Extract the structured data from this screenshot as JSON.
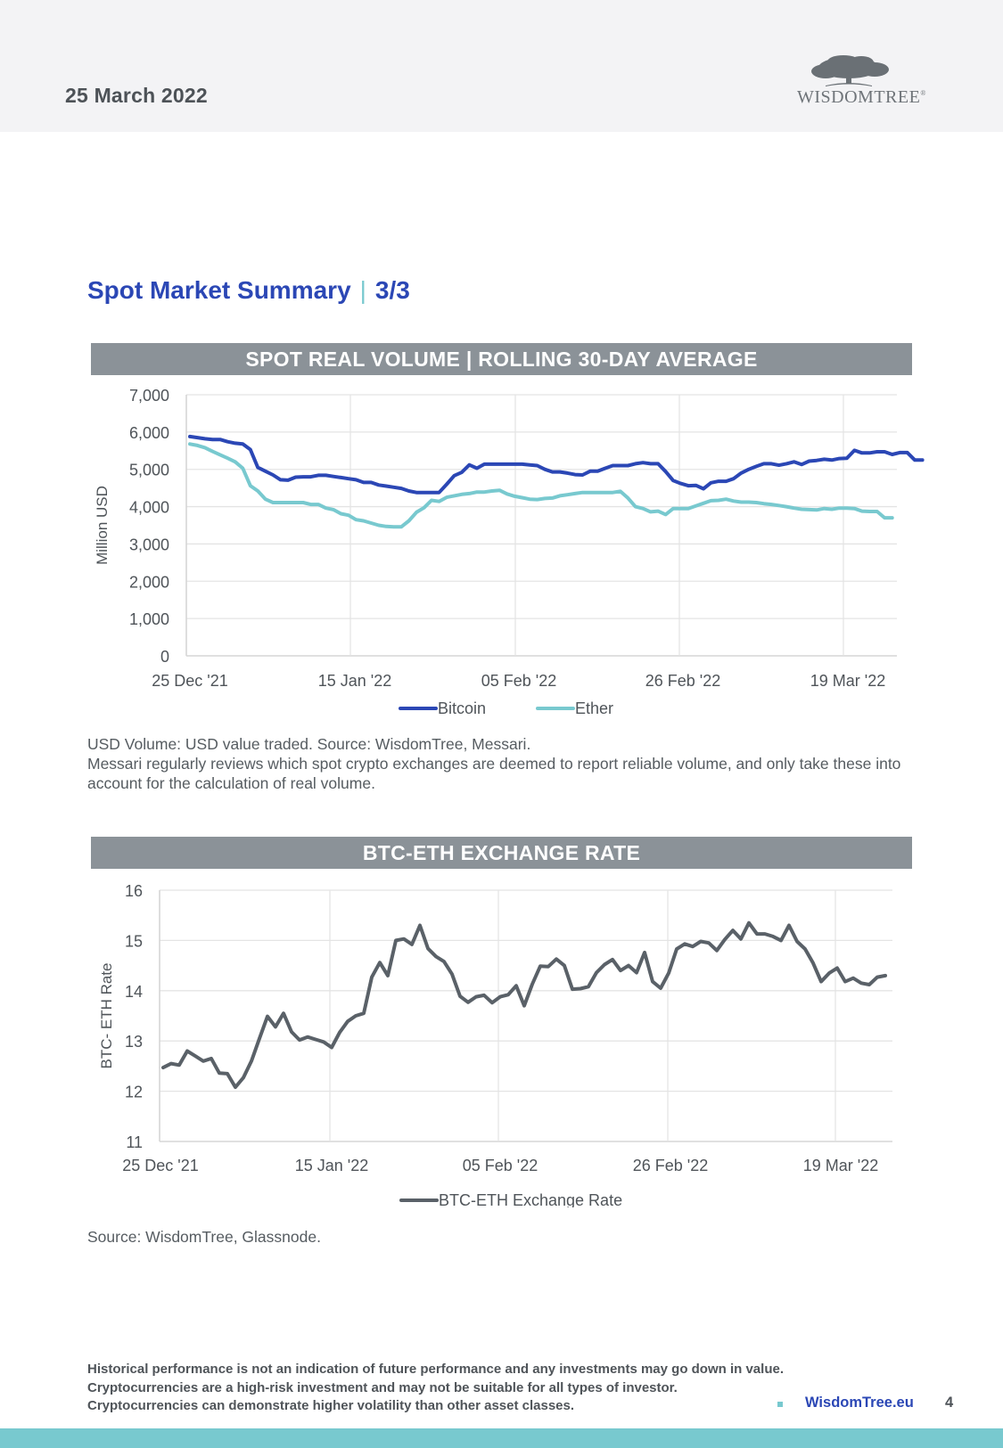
{
  "header": {
    "date": "25 March 2022",
    "logo_main": "WISDOM",
    "logo_second": "TREE",
    "logo_mark": "®"
  },
  "page_title": {
    "main": "Spot Market Summary",
    "separator": "|",
    "part": "3/3"
  },
  "chart_data": [
    {
      "type": "line",
      "title": "SPOT REAL VOLUME | ROLLING 30-DAY AVERAGE",
      "xlabel": "",
      "ylabel": "Million USD",
      "ylim": [
        0,
        7000
      ],
      "yticks": [
        "0",
        "1,000",
        "2,000",
        "3,000",
        "4,000",
        "5,000",
        "6,000",
        "7,000"
      ],
      "ytick_values": [
        0,
        1000,
        2000,
        3000,
        4000,
        5000,
        6000,
        7000
      ],
      "x_start": "25 Dec '21",
      "x_end": "24 Mar '22",
      "xtick_labels": [
        "25 Dec '21",
        "15 Jan '22",
        "05 Feb '22",
        "26 Feb '22",
        "19 Mar '22"
      ],
      "xtick_days": [
        0,
        21,
        42,
        63,
        84
      ],
      "grid": true,
      "legend": "bottom-center",
      "series": [
        {
          "name": "Bitcoin",
          "color": "#2b47b5",
          "values": [
            5880,
            5850,
            5820,
            5800,
            5800,
            5740,
            5700,
            5680,
            5530,
            5050,
            4950,
            4850,
            4720,
            4710,
            4790,
            4800,
            4800,
            4840,
            4840,
            4810,
            4780,
            4750,
            4720,
            4650,
            4650,
            4580,
            4550,
            4520,
            4490,
            4420,
            4380,
            4380,
            4380,
            4380,
            4600,
            4830,
            4920,
            5120,
            5030,
            5140,
            5140,
            5140,
            5140,
            5140,
            5140,
            5120,
            5100,
            5000,
            4930,
            4930,
            4900,
            4860,
            4850,
            4950,
            4950,
            5030,
            5100,
            5100,
            5100,
            5150,
            5180,
            5150,
            5150,
            4940,
            4700,
            4620,
            4560,
            4570,
            4480,
            4640,
            4680,
            4680,
            4750,
            4900,
            5000,
            5080,
            5150,
            5150,
            5110,
            5150,
            5200,
            5130,
            5220,
            5240,
            5270,
            5250,
            5290,
            5300,
            5510,
            5440,
            5440,
            5470,
            5470,
            5400,
            5450,
            5450,
            5250,
            5250
          ]
        },
        {
          "name": "Ether",
          "color": "#78c9cf",
          "values": [
            5680,
            5640,
            5580,
            5480,
            5390,
            5300,
            5200,
            5030,
            4560,
            4420,
            4200,
            4110,
            4110,
            4110,
            4110,
            4110,
            4060,
            4060,
            3960,
            3920,
            3810,
            3770,
            3650,
            3620,
            3560,
            3500,
            3470,
            3460,
            3460,
            3620,
            3850,
            3970,
            4170,
            4140,
            4250,
            4290,
            4330,
            4350,
            4390,
            4390,
            4420,
            4440,
            4340,
            4280,
            4240,
            4200,
            4190,
            4220,
            4230,
            4290,
            4320,
            4350,
            4380,
            4380,
            4380,
            4380,
            4380,
            4410,
            4230,
            4000,
            3950,
            3860,
            3880,
            3790,
            3950,
            3950,
            3950,
            4020,
            4090,
            4160,
            4170,
            4200,
            4150,
            4120,
            4120,
            4110,
            4080,
            4060,
            4030,
            4000,
            3960,
            3930,
            3920,
            3910,
            3950,
            3930,
            3960,
            3960,
            3950,
            3880,
            3870,
            3870,
            3700,
            3700
          ]
        }
      ]
    },
    {
      "type": "line",
      "title": "BTC-ETH EXCHANGE RATE",
      "xlabel": "",
      "ylabel": "BTC- ETH Rate",
      "ylim": [
        11,
        16
      ],
      "yticks": [
        "11",
        "12",
        "13",
        "14",
        "15",
        "16"
      ],
      "ytick_values": [
        11,
        12,
        13,
        14,
        15,
        16
      ],
      "x_start": "25 Dec '21",
      "x_end": "24 Mar '22",
      "xtick_labels": [
        "25 Dec '21",
        "15 Jan '22",
        "05 Feb '22",
        "26 Feb '22",
        "19 Mar '22"
      ],
      "xtick_days": [
        0,
        21,
        42,
        63,
        84
      ],
      "grid": true,
      "legend": "bottom-center",
      "series": [
        {
          "name": "BTC-ETH Exchange Rate",
          "color": "#5a6168",
          "values": [
            12.47,
            12.55,
            12.52,
            12.8,
            12.7,
            12.6,
            12.65,
            12.36,
            12.35,
            12.08,
            12.27,
            12.6,
            13.05,
            13.49,
            13.28,
            13.55,
            13.18,
            13.02,
            13.08,
            13.03,
            12.98,
            12.87,
            13.17,
            13.39,
            13.5,
            13.55,
            14.27,
            14.56,
            14.3,
            15.0,
            15.03,
            14.92,
            15.3,
            14.84,
            14.68,
            14.58,
            14.33,
            13.89,
            13.77,
            13.88,
            13.91,
            13.76,
            13.88,
            13.92,
            14.1,
            13.7,
            14.13,
            14.49,
            14.48,
            14.63,
            14.5,
            14.03,
            14.04,
            14.08,
            14.36,
            14.52,
            14.62,
            14.4,
            14.5,
            14.36,
            14.76,
            14.18,
            14.05,
            14.35,
            14.83,
            14.93,
            14.88,
            14.98,
            14.95,
            14.8,
            15.02,
            15.2,
            15.03,
            15.35,
            15.13,
            15.13,
            15.08,
            15.0,
            15.3,
            14.98,
            14.83,
            14.55,
            14.18,
            14.35,
            14.45,
            14.18,
            14.25,
            14.15,
            14.12,
            14.27,
            14.3
          ]
        }
      ]
    }
  ],
  "notes": {
    "chart1_line1": "USD Volume: USD value traded. Source: WisdomTree, Messari.",
    "chart1_line2": "Messari regularly reviews which spot crypto exchanges are deemed to report reliable volume, and only take these into account for the calculation of real volume.",
    "chart2_source": "Source: WisdomTree, Glassnode."
  },
  "footer": {
    "disclaimer_1": "Historical performance is not an indication of future performance and any investments may go down in value.",
    "disclaimer_2": "Cryptocurrencies are a high-risk investment and may not be suitable for all types of investor.",
    "disclaimer_3": "Cryptocurrencies can demonstrate higher volatility than other asset classes.",
    "link": "WisdomTree.eu",
    "page_number": "4"
  }
}
